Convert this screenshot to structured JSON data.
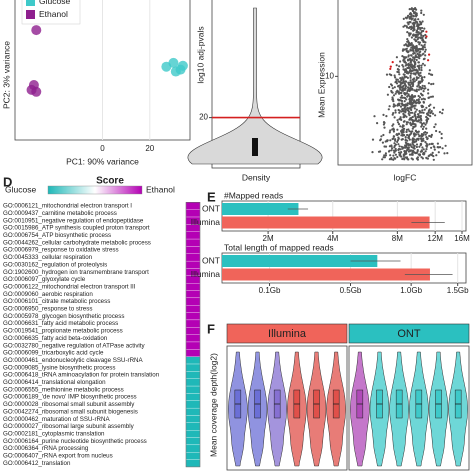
{
  "chart_data": [
    {
      "type": "scatter",
      "xlabel": "PC1: 90% variance",
      "ylabel": "PC2: 3% variance",
      "xlim": [
        -37,
        37
      ],
      "ylim": [
        -6,
        8
      ],
      "xticks": [
        0,
        20
      ],
      "series": [
        {
          "name": "Glucose",
          "color": "#3ec9c9",
          "x": [
            27,
            30,
            33,
            31,
            34
          ],
          "y": [
            1.6,
            2.0,
            1.3,
            1.1,
            1.7
          ]
        },
        {
          "name": "Ethanol",
          "color": "#8e1f8e",
          "x": [
            -28,
            -28,
            -29,
            -30,
            -28
          ],
          "y": [
            7.3,
            5.4,
            -0.3,
            -0.8,
            -1.0
          ]
        }
      ]
    },
    {
      "type": "violin",
      "xlabel": "Density",
      "ylabel": "log10 adj-pvals",
      "ylim": [
        -10,
        90
      ],
      "yticks": [
        20
      ],
      "threshold": 20,
      "threshold_color": "#d42020"
    },
    {
      "type": "scatter",
      "xlabel": "logFC",
      "ylabel": "Mean Expression",
      "log_y": true,
      "ylim": [
        2,
        40
      ],
      "yticks": [
        10
      ],
      "color": "#555555",
      "highlight_color": "#d41a1a"
    },
    {
      "type": "bar",
      "orientation": "horizontal",
      "title": "#Mapped reads",
      "categories": [
        "ONT",
        "Illumina"
      ],
      "values": [
        2770000,
        11300000
      ],
      "errors": [
        300000,
        2000000
      ],
      "colors": [
        "#2bc0c0",
        "#f0645a"
      ],
      "xscale": "log",
      "xlim": [
        1220000,
        16700000
      ],
      "xticks": [
        {
          "value": 2000000,
          "label": "2M"
        },
        {
          "value": 4000000,
          "label": "4M"
        },
        {
          "value": 8000000,
          "label": "8M"
        },
        {
          "value": 12000000,
          "label": "12M"
        },
        {
          "value": 16000000,
          "label": "16M"
        }
      ]
    },
    {
      "type": "bar",
      "orientation": "horizontal",
      "title": "Total length of mapped reads",
      "categories": [
        "ONT",
        "Illumina"
      ],
      "values": [
        0.7,
        1.19
      ],
      "errors": [
        0.2,
        0.25
      ],
      "colors": [
        "#2bc0c0",
        "#f0645a"
      ],
      "xscale": "sqrt",
      "xlim": [
        0.0075,
        1.6
      ],
      "xticks": [
        {
          "value": 0.1,
          "label": "0.1Gb"
        },
        {
          "value": 0.5,
          "label": "0.5Gb"
        },
        {
          "value": 1.0,
          "label": "1.0Gb"
        },
        {
          "value": 1.5,
          "label": "1.5Gb"
        }
      ]
    }
  ],
  "panel_letters": [
    "D",
    "E",
    "F"
  ],
  "score": {
    "title": "Score",
    "low": "Glucose",
    "high": "Ethanol"
  },
  "go_groups": [
    {
      "color": "#b400b4",
      "terms": [
        "GO:0006121_mitochondrial electron transport I",
        "GO:0009437_carnitine metabolic process",
        "GO:0010951_negative regulation of endopeptidase",
        "GO:0015986_ATP synthesis coupled proton transport",
        "GO:0006754_ATP biosynthetic process",
        "GO:0044262_cellular carbohydrate metabolic process",
        "GO:0006979_response to oxidative stress",
        "GO:0045333_cellular respiration",
        "GO:0030162_regulation of proteolysis",
        "GO:1902600_hydrogen ion transmembrane transport",
        "GO:0006097_glyoxylate cycle",
        "GO:0006122_mitochondrial electron transport III",
        "GO:0009060_aerobic respiration",
        "GO:0006101_citrate metabolic process",
        "GO:0006950_response to stress",
        "GO:0005978_glycogen biosynthetic process",
        "GO:0006631_fatty acid metabolic process",
        "GO:0019541_propionate metabolic process",
        "GO:0006635_fatty acid beta-oxidation",
        "GO:0032780_negative regulation of ATPase activity",
        "GO:0006099_tricarboxylic acid cycle"
      ]
    },
    {
      "color": "#1fb8b8",
      "terms": [
        "GO:0000461_endonucleolytic cleavage SSU-rRNA",
        "GO:0009085_lysine biosynthetic process",
        "GO:0006418_tRNA aminoacylation for protein translation",
        "GO:0006414_translational elongation",
        "GO:0006555_methionine metabolic process",
        "GO:0006189_'de novo' IMP biosynthetic process",
        "GO:0000028_ribosomal small subunit assembly",
        "GO:0042274_ribosomal small subunit biogenesis",
        "GO:0000462_maturation of SSU-rRNA",
        "GO:0000027_ribosomal large subunit assembly",
        "GO:0002181_cytoplasmic translation",
        "GO:0006164_purine nucleotide biosynthetic process",
        "GO:0006364_rRNA processing",
        "GO:0006407_rRNA export from nucleus",
        "GO:0006412_translation"
      ]
    }
  ],
  "coverage": {
    "ylabel": "Mean coverage depth(log2)",
    "facets": [
      {
        "name": "Illumina",
        "color": "#f0645a",
        "violins": [
          "#6b6fd6",
          "#6b6fd6",
          "#8670d2",
          "#e0504a",
          "#e0504a",
          "#e0504a"
        ]
      },
      {
        "name": "ONT",
        "color": "#2bc0c0",
        "violins": [
          "#b04ab8",
          "#3ec9c9",
          "#3ec9c9",
          "#3ec9c9",
          "#3ec9c9",
          "#3ec9c9"
        ]
      }
    ]
  }
}
